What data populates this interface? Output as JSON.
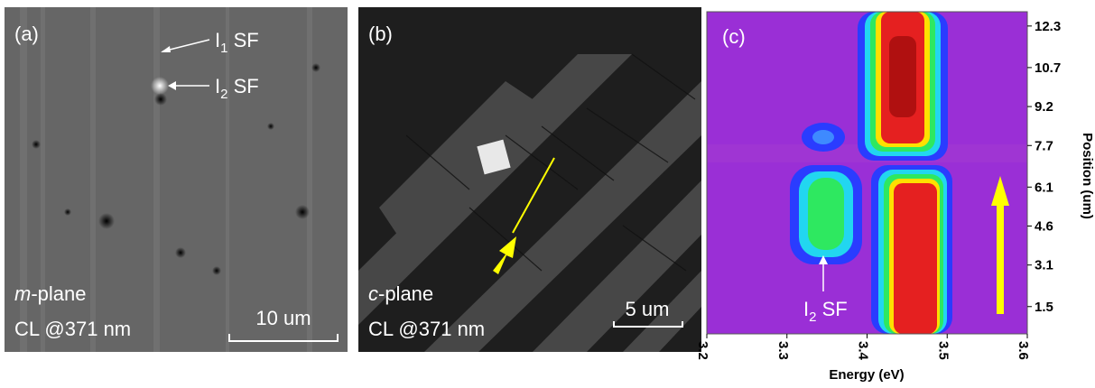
{
  "panel_a": {
    "label": "(a)",
    "arrow_1": {
      "base": "I",
      "sub": "1",
      "suffix": " SF"
    },
    "arrow_2": {
      "base": "I",
      "sub": "2",
      "suffix": " SF"
    },
    "plane": {
      "italic": "m",
      "rest": "-plane"
    },
    "condition": "CL @371 nm",
    "scale_bar": "10 um"
  },
  "panel_b": {
    "label": "(b)",
    "plane": {
      "italic": "c",
      "rest": "-plane"
    },
    "condition": "CL @371 nm",
    "scale_bar": "5 um"
  },
  "panel_c": {
    "label": "(c)",
    "annotation": {
      "base": "I",
      "sub": "2",
      "suffix": " SF"
    },
    "x_label": "Energy (eV)",
    "y_label": "Position (um)",
    "xlim": [
      3.2,
      3.6
    ],
    "xticks": [
      3.2,
      3.3,
      3.4,
      3.5,
      3.6
    ],
    "ylim": [
      0.45,
      12.85
    ],
    "yticks": [
      1.5,
      3.1,
      4.6,
      6.1,
      7.7,
      9.2,
      10.7,
      12.3
    ]
  }
}
